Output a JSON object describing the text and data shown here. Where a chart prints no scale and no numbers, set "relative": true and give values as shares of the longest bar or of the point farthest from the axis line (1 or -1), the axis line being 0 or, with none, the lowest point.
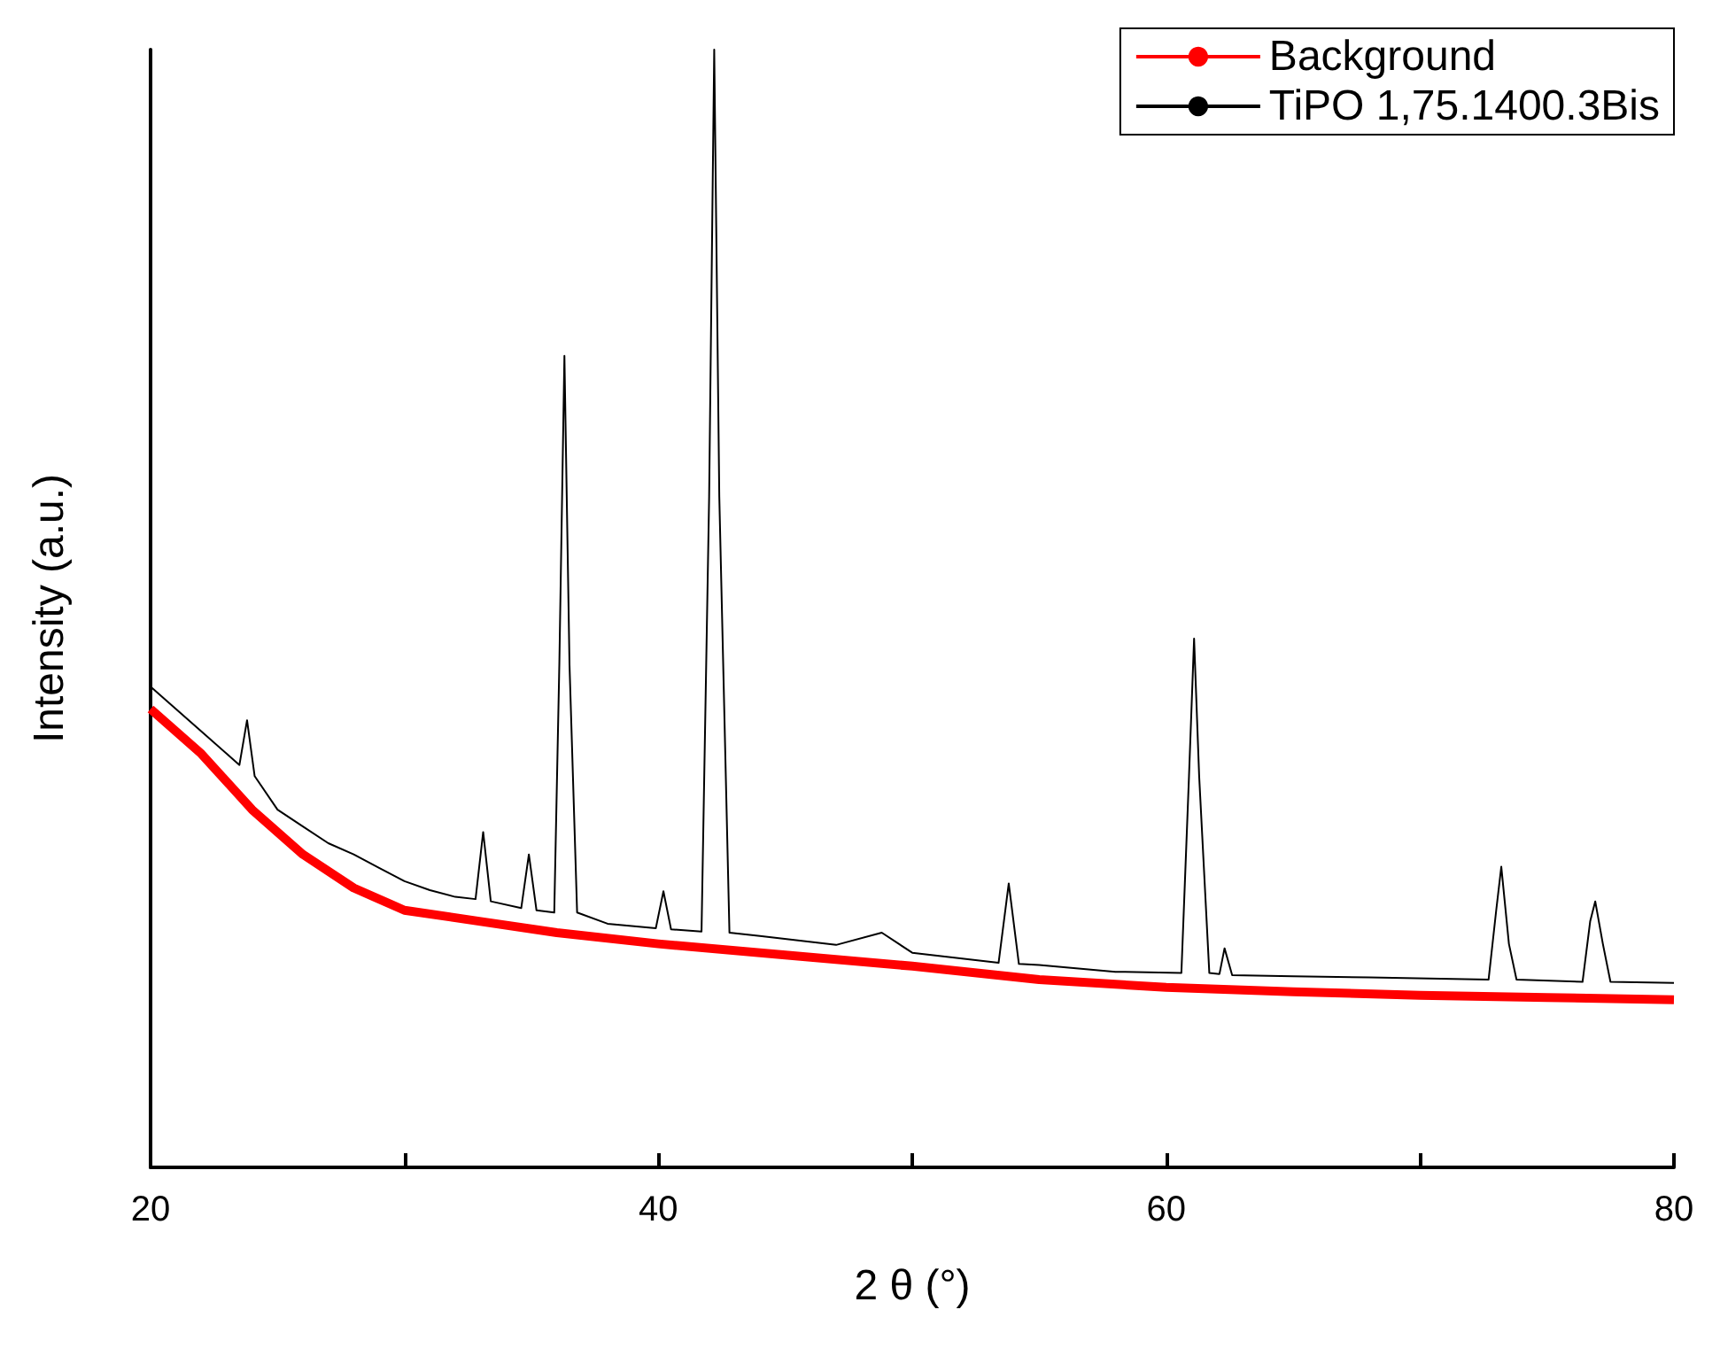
{
  "chart_data": {
    "type": "line",
    "xlabel": "2 θ (°)",
    "ylabel": "Intensity (a.u.)",
    "relative": true,
    "xlim": [
      20,
      80
    ],
    "xticks": [
      20,
      {
        "value": 30,
        "label": null
      },
      40,
      {
        "value": 50,
        "label": null
      },
      60,
      {
        "value": 70,
        "label": null
      },
      80
    ],
    "legend": "top right",
    "grid": false,
    "marker": "none",
    "series": [
      {
        "name": "Background",
        "color": "#ff0000",
        "x": [
          20,
          22,
          24,
          26,
          28,
          30,
          33,
          36,
          40,
          45,
          50,
          55,
          60,
          65,
          70,
          75,
          80
        ],
        "values": [
          0.41,
          0.37,
          0.32,
          0.28,
          0.25,
          0.23,
          0.22,
          0.21,
          0.2,
          0.19,
          0.18,
          0.168,
          0.161,
          0.157,
          0.154,
          0.152,
          0.15
        ]
      },
      {
        "name": "TiPO 1,75.1400.3Bis",
        "color": "#000000",
        "x": [
          20,
          21,
          22,
          23,
          23.5,
          23.8,
          24.1,
          25,
          26,
          27,
          28,
          29,
          30,
          31,
          32,
          32.8,
          33.1,
          33.4,
          34.6,
          34.9,
          35.2,
          35.9,
          36.1,
          36.3,
          36.5,
          36.8,
          38,
          39.9,
          40.2,
          40.5,
          41.7,
          42,
          42.2,
          42.4,
          42.8,
          44,
          47,
          48.8,
          50,
          53.4,
          53.8,
          54.2,
          55,
          58,
          60.6,
          60.9,
          61.1,
          61.3,
          61.7,
          62.1,
          62.3,
          62.6,
          65,
          68,
          72.7,
          73,
          73.2,
          73.5,
          73.8,
          76.4,
          76.7,
          76.9,
          77.2,
          77.5,
          80
        ],
        "values": [
          0.43,
          0.41,
          0.39,
          0.37,
          0.36,
          0.4,
          0.35,
          0.32,
          0.305,
          0.29,
          0.28,
          0.268,
          0.256,
          0.248,
          0.242,
          0.24,
          0.3,
          0.238,
          0.232,
          0.28,
          0.23,
          0.228,
          0.45,
          0.726,
          0.45,
          0.228,
          0.218,
          0.214,
          0.247,
          0.213,
          0.211,
          0.6,
          1,
          0.6,
          0.21,
          0.207,
          0.199,
          0.21,
          0.192,
          0.183,
          0.254,
          0.182,
          0.181,
          0.175,
          0.174,
          0.35,
          0.473,
          0.35,
          0.174,
          0.173,
          0.196,
          0.172,
          0.171,
          0.17,
          0.168,
          0.23,
          0.269,
          0.2,
          0.168,
          0.166,
          0.22,
          0.238,
          0.2,
          0.166,
          0.165
        ]
      }
    ]
  }
}
